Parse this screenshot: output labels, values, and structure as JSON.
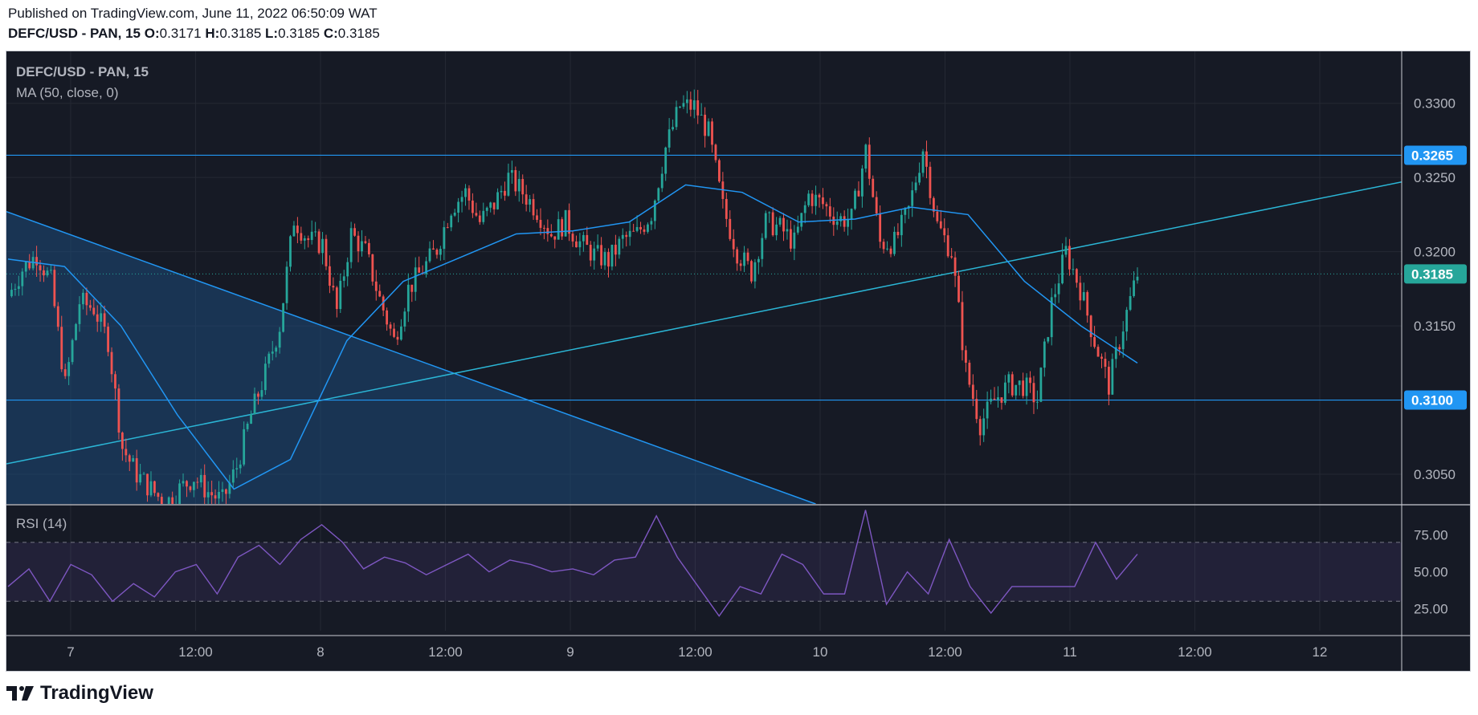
{
  "header": {
    "published": "Published on TradingView.com, June 11, 2022 06:50:09 WAT",
    "symbol": "DEFC/USD - PAN, 15",
    "o_label": "O:",
    "o_value": "0.3171",
    "h_label": "H:",
    "h_value": "0.3185",
    "l_label": "L:",
    "l_value": "0.3185",
    "c_label": "C:",
    "c_value": "0.3185"
  },
  "legend": {
    "symbol": "DEFC/USD - PAN, 15",
    "ma": "MA (50, close, 0)",
    "rsi": "RSI (14)"
  },
  "footer": {
    "brand": "TradingView"
  },
  "colors": {
    "background": "#161a25",
    "up": "#26a69a",
    "down": "#ef5350",
    "ma": "#2196f3",
    "trendline": "#2bb6d6",
    "level_line": "#2196f3",
    "rsi_line": "#7e57c2",
    "last_price_bg": "#26a69a",
    "level_tag_bg": "#2196f3",
    "triangle_fill": "#1e4a7a"
  },
  "chart_data": [
    {
      "type": "candlestick",
      "title": "DEFC/USD - PAN, 15",
      "ylim": [
        0.303,
        0.3335
      ],
      "yticks": [
        "0.3300",
        "0.3250",
        "0.3200",
        "0.3150",
        "0.3100",
        "0.3050"
      ],
      "xticks": [
        "7",
        "12:00",
        "8",
        "12:00",
        "9",
        "12:00",
        "10",
        "12:00",
        "11",
        "12:00",
        "12"
      ],
      "last_price": "0.3185",
      "horizontal_levels": [
        "0.3265",
        "0.3100"
      ],
      "price_path_approx": [
        [
          0.317,
          0.3188,
          0.3198,
          0.318,
          0.311,
          0.3166,
          0.3162,
          0.314,
          0.3068,
          0.305,
          0.304,
          0.303
        ],
        [
          0.304,
          0.3048,
          0.3038,
          0.3032,
          0.3055,
          0.309,
          0.3118,
          0.315,
          0.3222,
          0.3208,
          0.3205,
          0.316
        ],
        [
          0.3212,
          0.32,
          0.3168,
          0.314,
          0.3175,
          0.3188,
          0.3202,
          0.323,
          0.324,
          0.322,
          0.3232,
          0.325
        ],
        [
          0.324,
          0.3228,
          0.3212,
          0.322,
          0.3206,
          0.3198,
          0.3194,
          0.3208,
          0.3212,
          0.3226,
          0.327,
          0.3298
        ],
        [
          0.3298,
          0.328,
          0.323,
          0.32,
          0.3186,
          0.322,
          0.3216,
          0.3206,
          0.3238,
          0.3232,
          0.3222,
          0.3222
        ],
        [
          0.3268,
          0.3206,
          0.3206,
          0.3228,
          0.327,
          0.3218,
          0.32,
          0.312,
          0.3084,
          0.31,
          0.311,
          0.311
        ],
        [
          0.31,
          0.3165,
          0.32,
          0.3175,
          0.314,
          0.311,
          0.315,
          0.3185
        ]
      ],
      "moving_average": {
        "name": "MA (50, close, 0)",
        "approx": [
          0.3195,
          0.319,
          0.315,
          0.309,
          0.304,
          0.306,
          0.314,
          0.318,
          0.3196,
          0.3212,
          0.3214,
          0.322,
          0.3245,
          0.324,
          0.322,
          0.3222,
          0.323,
          0.3225,
          0.318,
          0.315,
          0.3125
        ]
      },
      "trendlines": [
        {
          "from": [
            0,
            0.3227
          ],
          "to": [
            0.58,
            0.303
          ]
        },
        {
          "from": [
            0,
            0.3057
          ],
          "to": [
            1,
            0.3247
          ]
        }
      ]
    },
    {
      "type": "line",
      "title": "RSI (14)",
      "ylim": [
        10,
        95
      ],
      "yticks": [
        "75.00",
        "50.00",
        "25.00"
      ],
      "bands": [
        30,
        70
      ],
      "values_approx": [
        40,
        52,
        30,
        55,
        48,
        30,
        42,
        33,
        50,
        55,
        35,
        60,
        68,
        55,
        72,
        82,
        70,
        52,
        60,
        56,
        48,
        55,
        62,
        50,
        58,
        55,
        50,
        52,
        48,
        58,
        60,
        88,
        60,
        40,
        20,
        40,
        35,
        62,
        55,
        35,
        35,
        92,
        28,
        50,
        35,
        72,
        40,
        22,
        40,
        40,
        40,
        40,
        70,
        45,
        62
      ]
    }
  ]
}
